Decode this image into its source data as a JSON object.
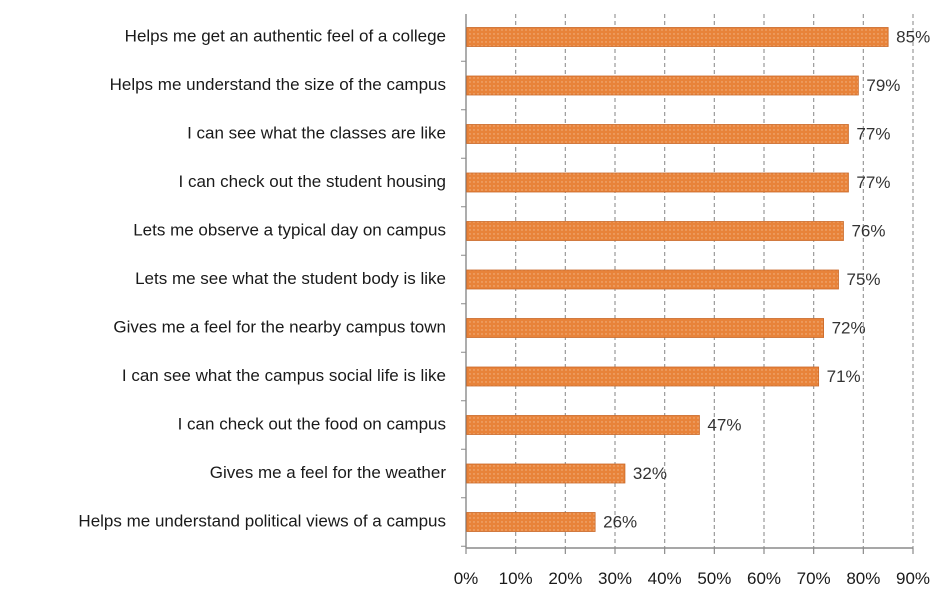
{
  "chart_data": {
    "type": "bar",
    "orientation": "horizontal",
    "categories": [
      "Helps me get an authentic feel of a college",
      "Helps me understand the size of the campus",
      "I can see what the classes are like",
      "I can check out the student housing",
      "Lets me observe a typical day on campus",
      "Lets me see what the student body is like",
      "Gives me a feel for the nearby campus town",
      "I can see what the campus social life is like",
      "I can check out the food on campus",
      "Gives me a feel for the weather",
      "Helps me understand political views of a campus"
    ],
    "values": [
      85,
      79,
      77,
      77,
      76,
      75,
      72,
      71,
      47,
      32,
      26
    ],
    "value_labels": [
      "85%",
      "79%",
      "77%",
      "77%",
      "76%",
      "75%",
      "72%",
      "71%",
      "47%",
      "32%",
      "26%"
    ],
    "x_ticks": [
      0,
      10,
      20,
      30,
      40,
      50,
      60,
      70,
      80,
      90
    ],
    "x_tick_labels": [
      "0%",
      "10%",
      "20%",
      "30%",
      "40%",
      "50%",
      "60%",
      "70%",
      "80%",
      "90%"
    ],
    "xlim": [
      0,
      90
    ],
    "grid": true,
    "grid_style": "dashed vertical",
    "legend": "none",
    "title": "",
    "xlabel": "",
    "ylabel": "",
    "colors": {
      "bar_fill": "#e8833a",
      "bar_stroke": "#c9692a",
      "grid": "#9a9a9a",
      "axis": "#8a8a8a"
    }
  }
}
